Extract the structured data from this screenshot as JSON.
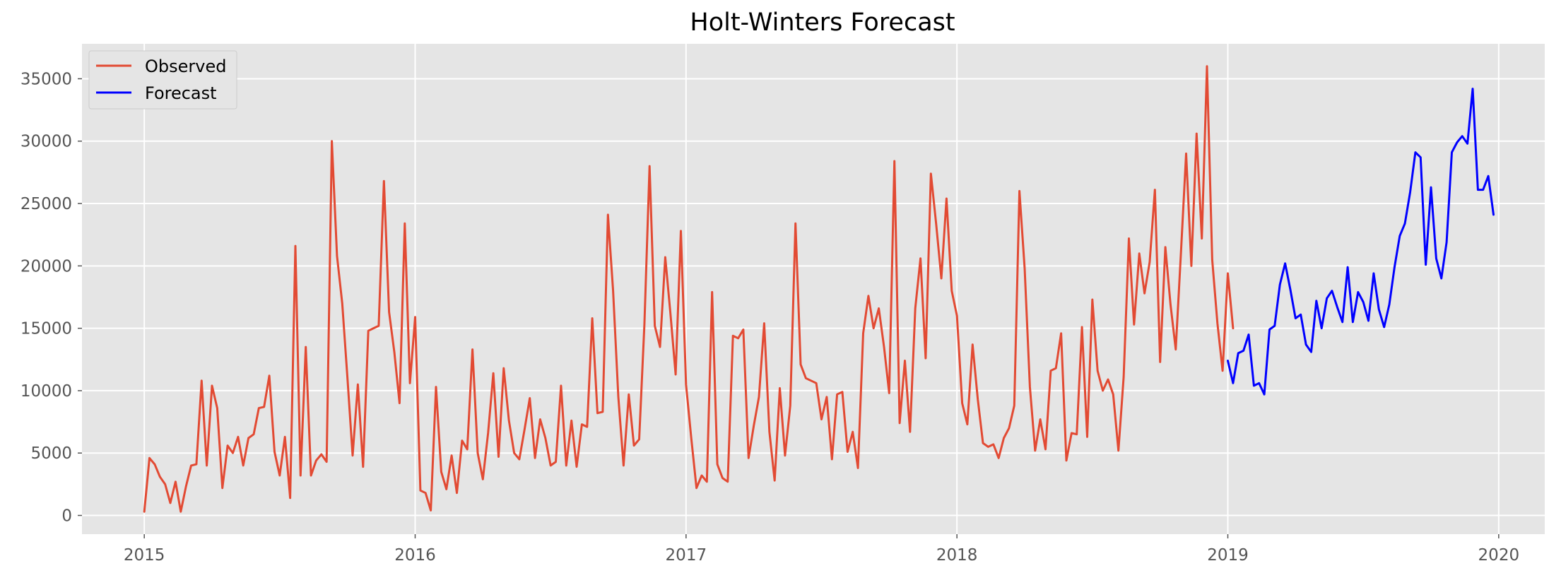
{
  "chart_data": {
    "type": "line",
    "title": "Holt-Winters Forecast",
    "xlabel": "",
    "ylabel": "",
    "xlim": [
      2014.77,
      2020.17
    ],
    "ylim": [
      -1500,
      37800
    ],
    "xticks": [
      2015,
      2016,
      2017,
      2018,
      2019,
      2020
    ],
    "xtick_labels": [
      "2015",
      "2016",
      "2017",
      "2018",
      "2019",
      "2020"
    ],
    "yticks": [
      0,
      5000,
      10000,
      15000,
      20000,
      25000,
      30000,
      35000
    ],
    "ytick_labels": [
      "0",
      "5000",
      "10000",
      "15000",
      "20000",
      "25000",
      "30000",
      "35000"
    ],
    "grid": true,
    "legend": "top-left",
    "background": "#e5e5e5",
    "series": [
      {
        "name": "Observed",
        "color": "#e24a33",
        "x_start": 2015.0,
        "x_step": 0.019231,
        "values": [
          300,
          4600,
          4100,
          3100,
          2500,
          1000,
          2700,
          300,
          2300,
          4000,
          4100,
          10800,
          4000,
          10400,
          8600,
          2200,
          5600,
          5000,
          6300,
          4000,
          6200,
          6500,
          8600,
          8700,
          11200,
          5100,
          3200,
          6300,
          1400,
          21600,
          3200,
          13500,
          3200,
          4400,
          4900,
          4300,
          30000,
          20800,
          17000,
          11000,
          4800,
          10500,
          3900,
          14800,
          15000,
          15200,
          26800,
          16300,
          13100,
          9000,
          23400,
          10600,
          15900,
          2000,
          1800,
          400,
          10300,
          3500,
          2100,
          4800,
          1800,
          6000,
          5300,
          13300,
          5000,
          2900,
          6600,
          11400,
          4700,
          11800,
          7600,
          5000,
          4500,
          6900,
          9400,
          4600,
          7700,
          6200,
          4000,
          4300,
          10400,
          4000,
          7600,
          3900,
          7300,
          7100,
          15800,
          8200,
          8300,
          24100,
          18000,
          9500,
          4000,
          9700,
          5600,
          6100,
          15300,
          28000,
          15200,
          13500,
          20700,
          16200,
          11300,
          22800,
          10500,
          6200,
          2200,
          3200,
          2700,
          17900,
          4100,
          3000,
          2700,
          14400,
          14200,
          14900,
          4600,
          7200,
          9500,
          15400,
          6700,
          2800,
          10200,
          4800,
          8800,
          23400,
          12100,
          11000,
          10800,
          10600,
          7700,
          9500,
          4500,
          9700,
          9900,
          5100,
          6700,
          3800,
          14600,
          17600,
          15000,
          16600,
          13500,
          9800,
          28400,
          7400,
          12400,
          6700,
          16600,
          20600,
          12600,
          27400,
          23400,
          19000,
          25400,
          18000,
          16000,
          9000,
          7300,
          13700,
          9300,
          5800,
          5500,
          5700,
          4600,
          6200,
          7000,
          8800,
          26000,
          19800,
          10300,
          5200,
          7700,
          5300,
          11600,
          11800,
          14600,
          4400,
          6600,
          6500,
          15100,
          6300,
          17300,
          11600,
          10000,
          10900,
          9700,
          5200,
          11100,
          22200,
          15300,
          21000,
          17800,
          20300,
          26100,
          12300,
          21500,
          16900,
          13300,
          21100,
          29000,
          20000,
          30600,
          22200,
          36000,
          20500,
          15400,
          11600,
          19400,
          15000
        ]
      },
      {
        "name": "Forecast",
        "color": "#0000ff",
        "x_start": 2019.0,
        "x_step": 0.019231,
        "values": [
          12400,
          10600,
          13000,
          13200,
          14500,
          10400,
          10600,
          9700,
          14900,
          15200,
          18500,
          20200,
          18100,
          15800,
          16100,
          13700,
          13100,
          17200,
          15000,
          17400,
          18000,
          16700,
          15500,
          19900,
          15500,
          17900,
          17100,
          15600,
          19400,
          16500,
          15100,
          16900,
          19900,
          22400,
          23400,
          25900,
          29100,
          28700,
          20100,
          26300,
          20600,
          19000,
          21900,
          29100,
          29900,
          30400,
          29800,
          34200,
          26100,
          26100,
          27200,
          24100
        ]
      }
    ]
  }
}
